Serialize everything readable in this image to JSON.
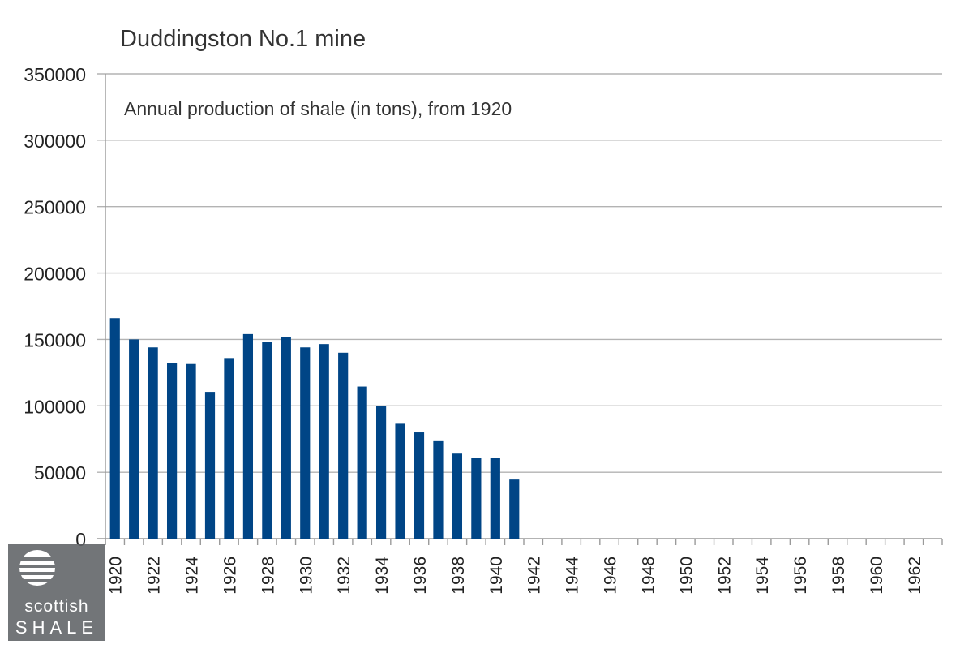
{
  "chart_data": {
    "type": "bar",
    "title": "Duddingston No.1 mine",
    "subtitle": "Annual production of shale (in tons), from 1920",
    "xlabel": "",
    "ylabel": "",
    "ylim": [
      0,
      350000
    ],
    "y_ticks": [
      "350000",
      "300000",
      "250000",
      "200000",
      "150000",
      "100000",
      "50000",
      "0"
    ],
    "grid": true,
    "legend": "none",
    "bar_color": "#004586",
    "x_tick_labels": [
      "1920",
      "1922",
      "1924",
      "1926",
      "1928",
      "1930",
      "1932",
      "1934",
      "1936",
      "1938",
      "1940",
      "1942",
      "1944",
      "1946",
      "1948",
      "1950",
      "1952",
      "1954",
      "1956",
      "1958",
      "1960",
      "1962"
    ],
    "categories": [
      "1920",
      "1921",
      "1922",
      "1923",
      "1924",
      "1925",
      "1926",
      "1927",
      "1928",
      "1929",
      "1930",
      "1931",
      "1932",
      "1933",
      "1934",
      "1935",
      "1936",
      "1937",
      "1938",
      "1939",
      "1940",
      "1941",
      "1942",
      "1943",
      "1944",
      "1945",
      "1946",
      "1947",
      "1948",
      "1949",
      "1950",
      "1951",
      "1952",
      "1953",
      "1954",
      "1955",
      "1956",
      "1957",
      "1958",
      "1959",
      "1960",
      "1961",
      "1962",
      "1963"
    ],
    "values": [
      166000,
      150000,
      144000,
      132000,
      131500,
      110500,
      136000,
      154000,
      148000,
      152000,
      144000,
      146500,
      140000,
      114500,
      100000,
      86500,
      80000,
      74000,
      64000,
      60500,
      60500,
      44500,
      0,
      0,
      0,
      0,
      0,
      0,
      0,
      0,
      0,
      0,
      0,
      0,
      0,
      0,
      0,
      0,
      0,
      0,
      0,
      0,
      0,
      0
    ]
  },
  "logo": {
    "line1": "scottish",
    "line2": "SHALE"
  }
}
